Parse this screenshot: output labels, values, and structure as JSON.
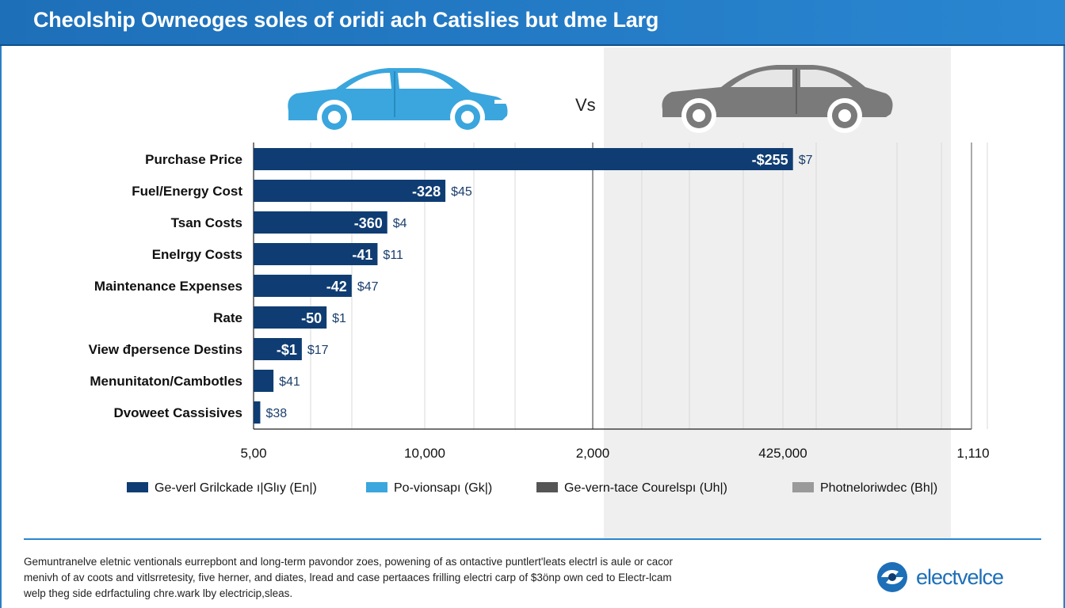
{
  "header": {
    "title": "Cheolship Owneoges soles of oridi ach Catislies but dme Larg"
  },
  "comparison": {
    "vs_label": "Vs",
    "car_left_icon": "car-side-icon",
    "car_left_color": "#3aa6dd",
    "car_right_icon": "car-side-icon",
    "car_right_color": "#7a7a7a"
  },
  "chart_data": {
    "type": "bar",
    "orientation": "horizontal",
    "categories": [
      "Purchase Price",
      "Fuel/Energy Cost",
      "Tsan Costs",
      "Enelrgy Costs",
      "Maintenance Expenses",
      "Rate",
      "View đpersence Destins",
      "Menunitaton/Cambotles",
      "Dvoweet Cassisives"
    ],
    "values": [
      5635,
      2004,
      1397,
      1295,
      1025,
      763,
      504,
      208,
      70
    ],
    "bar_labels_inside": [
      "-$255",
      "-328",
      "-360",
      "-41",
      "-42",
      "-50",
      "-$1",
      "",
      ""
    ],
    "bar_labels_outside": [
      "$7",
      "$45",
      "$4",
      "$11",
      "$47",
      "$1",
      "$17",
      "$41",
      "$38"
    ],
    "x_ticks": [
      "5,00",
      "10,000",
      "2,000",
      "425,000",
      "1,110"
    ],
    "grid": true,
    "bar_color": "#0f3d73",
    "legend": [
      {
        "label": "Ge-verl Grilckade ı|Glıy (En|)",
        "color": "#0f3d73"
      },
      {
        "label": "Po-vionsapı (Gk|)",
        "color": "#3aa6dd"
      },
      {
        "label": "Ge-vern-tace Courelspı (Uh|)",
        "color": "#555555"
      },
      {
        "label": "Photneloriwdec (Bh|)",
        "color": "#9a9a9a"
      }
    ],
    "legend_position": "bottom"
  },
  "footer": {
    "lines": [
      "Gemuntranelve eletnic ventionals eurrepbont and long-term pavondor zoes, powening of as ontactive puntlert'leats electrl is aule or cacor",
      "menivh of av coots and vitlsrretesity, five herner, and diates, lread and case pertaaces frilling electri carp of $3önp own ced to Electr-lcam",
      "welp theg side edrfactuling chre.wark lby electricip,sleas."
    ],
    "brand_name": "electvelce",
    "brand_icon": "brand-logo-icon",
    "brand_color": "#1d6fb8"
  }
}
